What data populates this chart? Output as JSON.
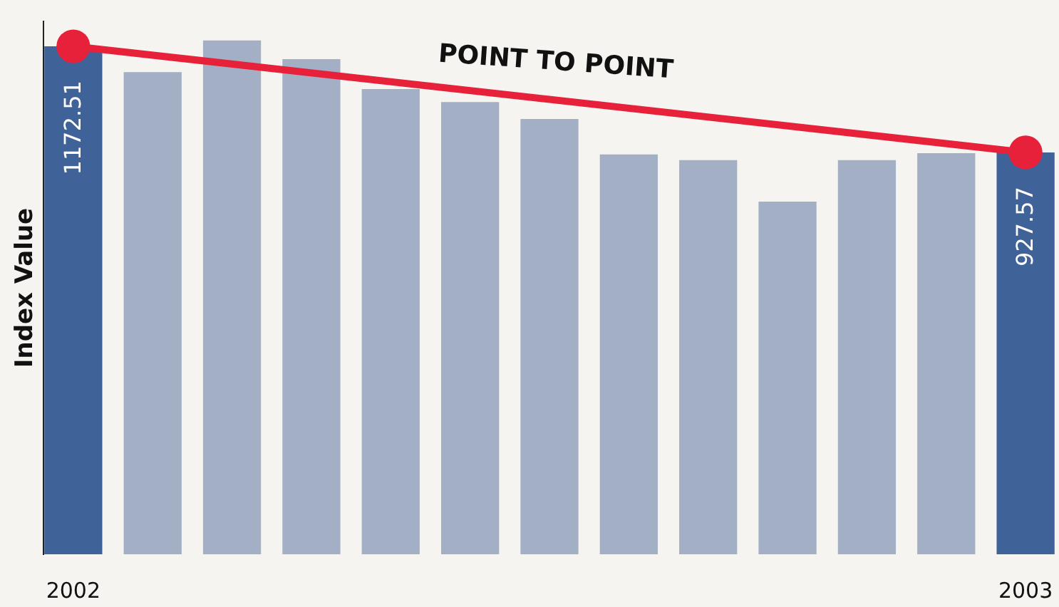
{
  "chart_data": {
    "type": "bar",
    "ylabel": "Index Value",
    "categories": [
      "2002",
      null,
      null,
      null,
      null,
      null,
      null,
      null,
      null,
      null,
      null,
      null,
      "2003"
    ],
    "values": [
      1172.51,
      1113,
      1186,
      1143,
      1074,
      1044,
      1005,
      923,
      910,
      814,
      910,
      926,
      927.57
    ],
    "colors": [
      "#3f6298",
      "#a3afc4",
      "#a3afc4",
      "#a3afc4",
      "#a3afc4",
      "#a3afc4",
      "#a3afc4",
      "#a3afc4",
      "#a3afc4",
      "#a3afc4",
      "#a3afc4",
      "#a3afc4",
      "#3f6298"
    ],
    "value_labels": [
      "1172.51",
      null,
      null,
      null,
      null,
      null,
      null,
      null,
      null,
      null,
      null,
      null,
      "927.57"
    ],
    "series": [
      {
        "type": "line",
        "color": "#e8213a",
        "values": [
          1172.51,
          null,
          null,
          null,
          null,
          null,
          null,
          null,
          null,
          null,
          null,
          null,
          927.57
        ],
        "marker": "circle"
      }
    ],
    "annotations": [
      "POINT TO POINT"
    ],
    "tick_labels": "x",
    "grid": false
  }
}
